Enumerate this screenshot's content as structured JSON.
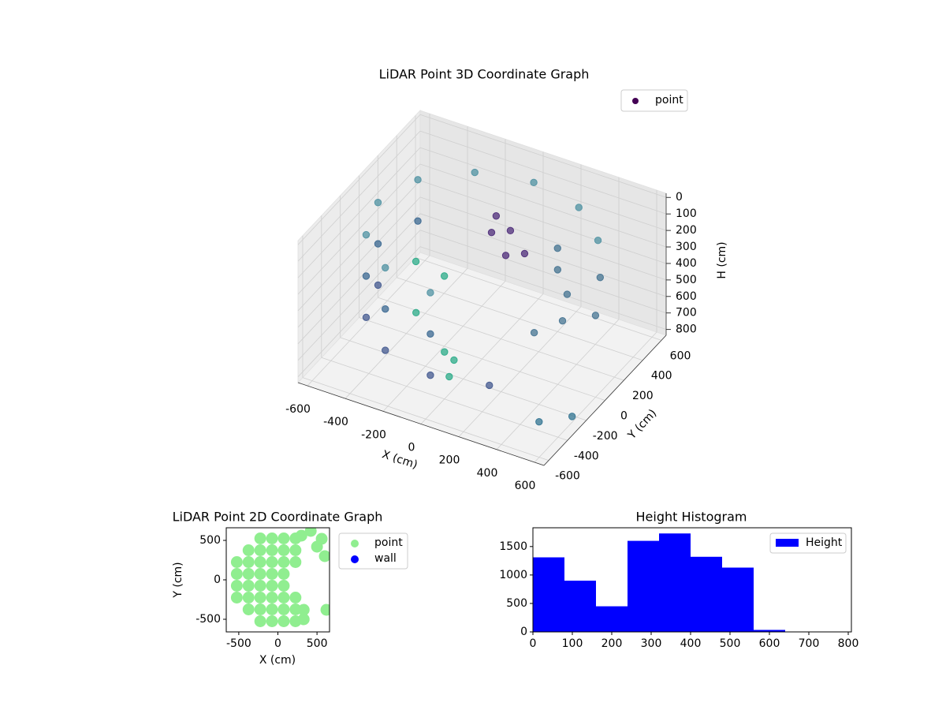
{
  "chart_data": [
    {
      "type": "scatter3d",
      "title": "LiDAR Point 3D Coordinate Graph",
      "xlabel": "X (cm)",
      "ylabel": "Y (cm)",
      "zlabel": "H (cm)",
      "xlim": [
        -650,
        650
      ],
      "ylim": [
        -650,
        650
      ],
      "zlim": [
        835,
        -25
      ],
      "xticks": [
        -600,
        -400,
        -200,
        0,
        200,
        400,
        600
      ],
      "yticks": [
        -600,
        -400,
        -200,
        0,
        200,
        400,
        600
      ],
      "zticks": [
        0,
        100,
        200,
        300,
        400,
        500,
        600,
        700,
        800
      ],
      "grid": true,
      "legend": "upper right",
      "series": [
        {
          "name": "point",
          "color": "#440154",
          "x": [
            476,
            275,
            0,
            -275,
            -476,
            -550,
            -476,
            -275,
            0,
            -476,
            -550,
            -476,
            -275,
            0,
            -550,
            -476,
            -275,
            0,
            275,
            -300,
            -200,
            0,
            50,
            -100,
            100,
            50,
            100,
            150,
            0,
            200,
            300,
            400,
            450,
            350,
            500,
            550,
            250,
            500,
            600
          ],
          "y": [
            275,
            476,
            550,
            476,
            275,
            0,
            -275,
            -476,
            -550,
            275,
            0,
            -275,
            -476,
            -550,
            0,
            -275,
            -476,
            -550,
            -476,
            -100,
            -300,
            -400,
            -450,
            -200,
            -500,
            0,
            100,
            -50,
            150,
            50,
            200,
            100,
            -50,
            -150,
            250,
            100,
            300,
            -400,
            -250
          ],
          "z": [
            100,
            100,
            100,
            100,
            100,
            100,
            100,
            100,
            100,
            350,
            350,
            350,
            350,
            350,
            600,
            600,
            600,
            600,
            600,
            300,
            450,
            550,
            650,
            250,
            500,
            50,
            80,
            120,
            60,
            150,
            300,
            350,
            400,
            450,
            300,
            420,
            250,
            780,
            800
          ],
          "colors": [
            "#4a8fa0",
            "#4a8fa0",
            "#4a8fa0",
            "#4a8fa0",
            "#4a8fa0",
            "#4a8fa0",
            "#4a8fa0",
            "#4a8fa0",
            "#4a8fa0",
            "#33638d",
            "#33638d",
            "#33638d",
            "#33638d",
            "#33638d",
            "#3b528b",
            "#3b528b",
            "#3b528b",
            "#3b528b",
            "#3b528b",
            "#22a884",
            "#22a884",
            "#22a884",
            "#22a884",
            "#22a884",
            "#22a884",
            "#482576",
            "#482576",
            "#482576",
            "#482576",
            "#482576",
            "#3e6f8e",
            "#3e6f8e",
            "#3e6f8e",
            "#3e6f8e",
            "#3e6f8e",
            "#3e6f8e",
            "#3e6f8e",
            "#2a6f8e",
            "#2a6f8e"
          ]
        }
      ]
    },
    {
      "type": "scatter",
      "title": "LiDAR Point 2D Coordinate Graph",
      "xlabel": "X (cm)",
      "ylabel": "Y (cm)",
      "xlim": [
        -660,
        660
      ],
      "ylim": [
        -660,
        660
      ],
      "xticks": [
        -500,
        0,
        500
      ],
      "yticks": [
        -500,
        0,
        500
      ],
      "legend": "outside right",
      "series": [
        {
          "name": "point",
          "color": "#90ee90",
          "x": [
            -525,
            -525,
            -525,
            -525,
            -375,
            -375,
            -375,
            -375,
            -375,
            -375,
            -225,
            -225,
            -225,
            -225,
            -225,
            -225,
            -225,
            -225,
            -75,
            -75,
            -75,
            -75,
            -75,
            -75,
            -75,
            -75,
            75,
            75,
            75,
            75,
            75,
            75,
            75,
            75,
            225,
            225,
            225,
            225,
            225,
            225,
            330,
            330,
            300,
            420,
            500,
            600,
            620,
            560
          ],
          "y": [
            -225,
            -75,
            75,
            225,
            -375,
            -225,
            -75,
            75,
            225,
            375,
            -525,
            -375,
            -225,
            -75,
            75,
            225,
            375,
            525,
            -525,
            -375,
            -225,
            -75,
            75,
            225,
            375,
            525,
            -525,
            -375,
            -225,
            -75,
            75,
            225,
            375,
            525,
            -525,
            -375,
            -225,
            225,
            375,
            525,
            -500,
            -380,
            560,
            620,
            420,
            300,
            -380,
            520
          ]
        },
        {
          "name": "wall",
          "color": "#0000ff",
          "x": [],
          "y": []
        }
      ]
    },
    {
      "type": "histogram",
      "title": "Height Histogram",
      "bins": [
        0,
        80,
        160,
        240,
        320,
        400,
        480,
        560,
        640,
        720,
        800
      ],
      "xlim": [
        0,
        808
      ],
      "ylim": [
        0,
        1830
      ],
      "xticks": [
        0,
        100,
        200,
        300,
        400,
        500,
        600,
        700,
        800
      ],
      "yticks": [
        0,
        500,
        1000,
        1500
      ],
      "legend": "upper right",
      "series": [
        {
          "name": "Height",
          "color": "#0000ff",
          "values": [
            1310,
            900,
            450,
            1600,
            1730,
            1320,
            1130,
            35,
            5,
            3
          ]
        }
      ]
    }
  ]
}
